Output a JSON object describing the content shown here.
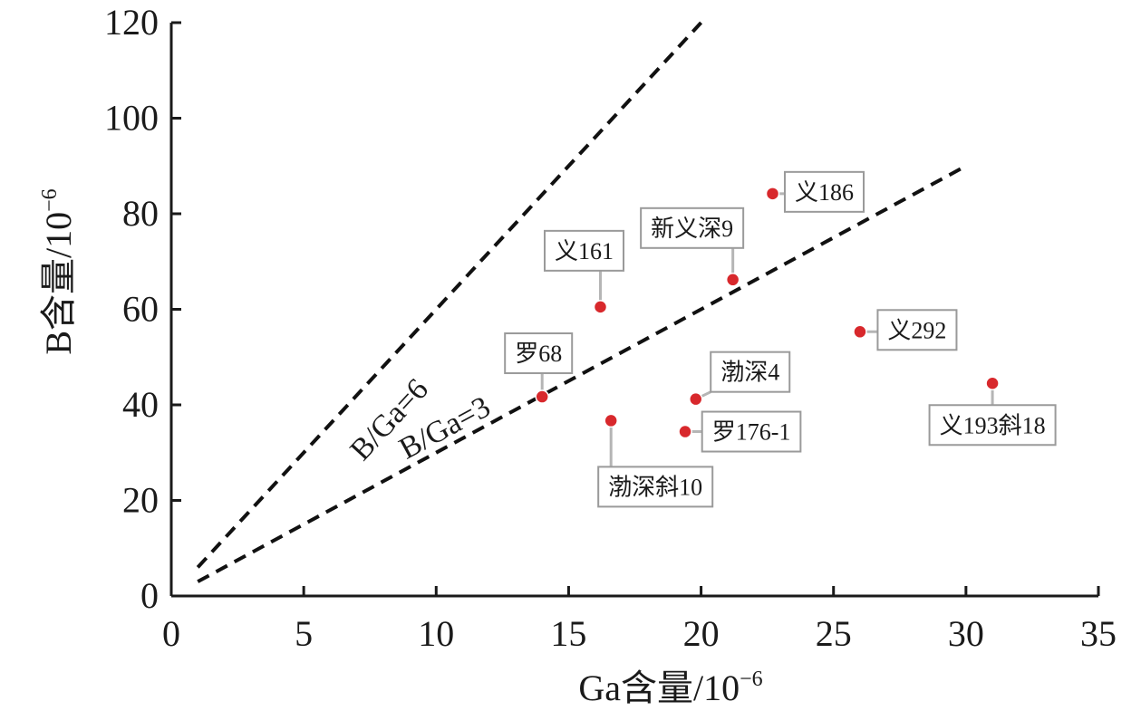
{
  "chart_data": {
    "type": "scatter",
    "xlabel": "Ga含量/10",
    "xlabel_sup": "−6",
    "ylabel": "B含量/10",
    "ylabel_sup": "−6",
    "xlim": [
      0,
      35
    ],
    "ylim": [
      0,
      120
    ],
    "x_ticks": [
      0,
      5,
      10,
      15,
      20,
      25,
      30,
      35
    ],
    "y_ticks": [
      0,
      20,
      40,
      60,
      80,
      100,
      120
    ],
    "grid": false,
    "point_color": "#d8282c",
    "points": [
      {
        "label": "义161",
        "x": 16.2,
        "y": 60.5
      },
      {
        "label": "义186",
        "x": 22.7,
        "y": 84.2
      },
      {
        "label": "新义深9",
        "x": 21.2,
        "y": 66.2
      },
      {
        "label": "义292",
        "x": 26.0,
        "y": 55.3
      },
      {
        "label": "罗68",
        "x": 14.0,
        "y": 41.7
      },
      {
        "label": "渤深4",
        "x": 19.8,
        "y": 41.2
      },
      {
        "label": "罗176-1",
        "x": 19.4,
        "y": 34.4
      },
      {
        "label": "渤深斜10",
        "x": 16.6,
        "y": 36.7
      },
      {
        "label": "义193斜18",
        "x": 31.0,
        "y": 44.5
      }
    ],
    "reference_lines": [
      {
        "label": "B/Ga=6",
        "slope": 6,
        "x_range": [
          1,
          20
        ]
      },
      {
        "label": "B/Ga=3",
        "slope": 3,
        "x_range": [
          1,
          30
        ]
      }
    ]
  }
}
